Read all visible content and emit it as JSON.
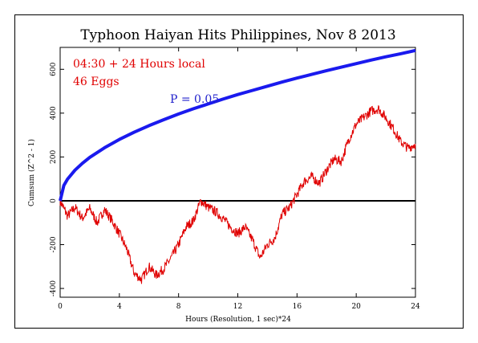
{
  "chart_data": {
    "type": "line",
    "title": "Typhoon Haiyan Hits Philippines, Nov 8 2013",
    "xlabel": "Hours (Resolution, 1 sec)*24",
    "ylabel": "Cumsum (Z^2 - 1)",
    "xlim": [
      0,
      24
    ],
    "ylim": [
      -440,
      700
    ],
    "x_ticks": [
      0,
      4,
      8,
      12,
      16,
      20,
      24
    ],
    "y_ticks": [
      -400,
      -200,
      0,
      200,
      400,
      600
    ],
    "grid": false,
    "annotations": [
      {
        "text": "04:30 + 24 Hours local",
        "color": "#e00000"
      },
      {
        "text": "46 Eggs",
        "color": "#e00000"
      },
      {
        "text": "P = 0.05",
        "color": "#2222cc"
      }
    ],
    "series": [
      {
        "color": "#e00000",
        "x": [
          0,
          0.5,
          1,
          1.5,
          2,
          2.5,
          3,
          3.5,
          4,
          4.5,
          5,
          5.5,
          6,
          6.5,
          7,
          7.5,
          8,
          8.5,
          9,
          9.5,
          10,
          10.5,
          11,
          11.5,
          12,
          12.5,
          13,
          13.5,
          14,
          14.5,
          15,
          15.5,
          16,
          16.5,
          17,
          17.5,
          18,
          18.5,
          19,
          19.5,
          20,
          20.5,
          21,
          21.5,
          22,
          22.5,
          23,
          23.5,
          24
        ],
        "values": [
          0,
          -70,
          -30,
          -80,
          -35,
          -100,
          -40,
          -90,
          -150,
          -220,
          -330,
          -360,
          -300,
          -340,
          -310,
          -260,
          -200,
          -120,
          -90,
          0,
          -30,
          -50,
          -80,
          -120,
          -150,
          -120,
          -180,
          -260,
          -200,
          -170,
          -60,
          -30,
          30,
          90,
          110,
          80,
          140,
          190,
          180,
          280,
          350,
          380,
          410,
          420,
          380,
          330,
          270,
          240,
          260
        ]
      },
      {
        "color": "#1a1aee",
        "name": "P = 0.05",
        "x": [
          0,
          0.25,
          0.5,
          1,
          1.5,
          2,
          3,
          4,
          5,
          6,
          7,
          8,
          9,
          10,
          11,
          12,
          13,
          14,
          15,
          16,
          17,
          18,
          19,
          20,
          21,
          22,
          23,
          24
        ],
        "values": [
          0,
          70,
          99,
          140,
          171,
          198,
          242,
          280,
          313,
          343,
          370,
          396,
          420,
          442,
          464,
          485,
          504,
          523,
          542,
          560,
          577,
          594,
          610,
          626,
          642,
          657,
          671,
          686
        ]
      }
    ]
  }
}
